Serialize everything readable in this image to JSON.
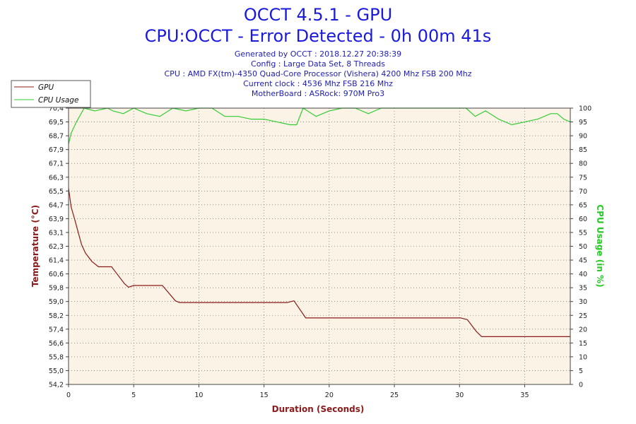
{
  "header": {
    "title": "OCCT 4.5.1 - GPU",
    "subtitle": "CPU:OCCT - Error Detected - 0h 00m 41s",
    "info_lines": [
      "Generated by OCCT : 2018.12.27 20:38:39",
      "Config : Large Data Set, 8 Threads",
      "CPU : AMD FX(tm)-4350 Quad-Core Processor (Vishera) 4200 Mhz FSB 200 Mhz",
      "Current clock : 4536 Mhz FSB 216 Mhz",
      "MotherBoard : ASRock: 970M Pro3"
    ]
  },
  "colors": {
    "gpu": "#8b1a1a",
    "cpu_usage": "#33cc33",
    "plot_bg": "#fbf3e6",
    "grid": "#555555",
    "title": "#1a1adc"
  },
  "chart_data": {
    "type": "line",
    "xlabel": "Duration (Seconds)",
    "ylabel": "Temperature (°C)",
    "y2label": "CPU Usage (in %)",
    "xlim": [
      0,
      38.5
    ],
    "ylim": [
      54.2,
      70.4
    ],
    "y2lim": [
      0,
      100
    ],
    "x_ticks": [
      0,
      5,
      10,
      15,
      20,
      25,
      30,
      35
    ],
    "y_ticks": [
      "54,2",
      "55,0",
      "55,8",
      "56,6",
      "57,4",
      "58,2",
      "59,0",
      "59,8",
      "60,6",
      "61,4",
      "62,3",
      "63,1",
      "63,9",
      "64,7",
      "65,5",
      "66,3",
      "67,1",
      "67,9",
      "68,7",
      "69,5",
      "70,4"
    ],
    "y2_ticks": [
      0,
      5,
      10,
      15,
      20,
      25,
      30,
      35,
      40,
      45,
      50,
      55,
      60,
      65,
      70,
      75,
      80,
      85,
      90,
      95,
      100
    ],
    "grid": true,
    "legend": [
      "GPU",
      "CPU Usage"
    ],
    "legend_position": "top-left",
    "series": [
      {
        "name": "GPU",
        "axis": "left",
        "x": [
          0,
          0.2,
          0.5,
          1.0,
          1.3,
          1.8,
          2.3,
          3.3,
          3.5,
          4.3,
          4.6,
          5.0,
          7.2,
          8.2,
          8.5,
          16.8,
          17.3,
          18.2,
          30.1,
          30.6,
          31.3,
          31.7,
          38.5
        ],
        "y": [
          65.7,
          64.6,
          63.8,
          62.4,
          61.9,
          61.4,
          61.1,
          61.1,
          60.9,
          60.1,
          59.9,
          60.0,
          60.0,
          59.1,
          59.0,
          59.0,
          59.1,
          58.1,
          58.1,
          58.0,
          57.3,
          57.0,
          57.0
        ]
      },
      {
        "name": "CPU Usage",
        "axis": "right",
        "x": [
          0,
          0.2,
          0.6,
          1.2,
          2.0,
          3.0,
          3.4,
          4.2,
          5.0,
          6.0,
          7.0,
          8.0,
          9.0,
          10.0,
          11.0,
          12.0,
          13.0,
          14.0,
          15.0,
          16.0,
          17.0,
          17.5,
          18.0,
          19.0,
          20.0,
          21.0,
          22.0,
          23.0,
          24.0,
          25.0,
          26.0,
          27.0,
          28.0,
          29.0,
          30.0,
          30.5,
          31.2,
          32.0,
          33.0,
          34.0,
          35.0,
          36.0,
          37.0,
          37.5,
          38.0,
          38.5
        ],
        "y": [
          87,
          91,
          95,
          100,
          99,
          100,
          99,
          98,
          100,
          98,
          97,
          100,
          99,
          100,
          100,
          97,
          97,
          96,
          96,
          95,
          94,
          94,
          100,
          97,
          99,
          100,
          100,
          98,
          100,
          100,
          100,
          100,
          100,
          100,
          100,
          100,
          97,
          99,
          96,
          94,
          95,
          96,
          98,
          98,
          96,
          95
        ]
      }
    ]
  }
}
